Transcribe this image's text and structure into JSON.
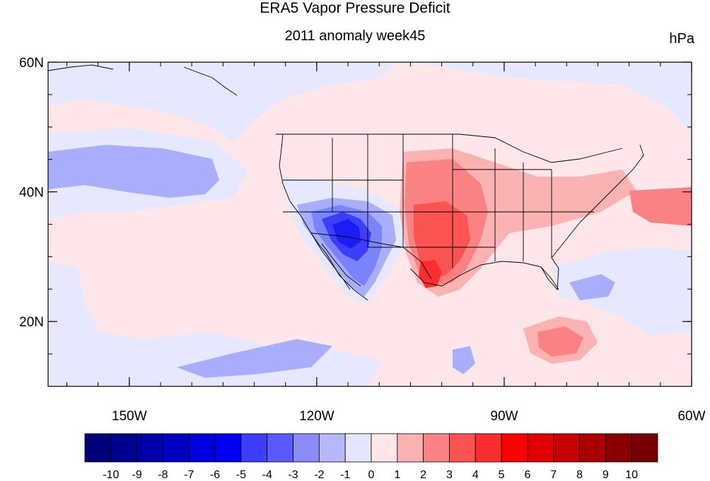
{
  "title": "ERA5 Vapor Pressure Deficit",
  "subtitle": "2011 anomaly week45",
  "units": "hPa",
  "map": {
    "lon_range": [
      -163,
      -60
    ],
    "lat_range": [
      10,
      60
    ],
    "lon_ticks": [
      {
        "lon": -150,
        "label": "150W"
      },
      {
        "lon": -120,
        "label": "120W"
      },
      {
        "lon": -90,
        "label": "90W"
      },
      {
        "lon": -60,
        "label": "60W"
      }
    ],
    "lat_ticks": [
      {
        "lat": 60,
        "label": "60N"
      },
      {
        "lat": 40,
        "label": "40N"
      },
      {
        "lat": 20,
        "label": "20N"
      }
    ],
    "background_anomaly_color": "#ffe6e8",
    "regions": [
      {
        "name": "pacific-north-negative",
        "level": -1,
        "color": "#e5e8ff"
      },
      {
        "name": "pacific-central-negative",
        "level": -2,
        "color": "#a8aefc"
      },
      {
        "name": "southwest-us-negative",
        "level": -3,
        "color": "#7b83fb"
      },
      {
        "name": "southwest-us-core-negative",
        "level": -6,
        "color": "#1a1ef5"
      },
      {
        "name": "southern-plains-positive",
        "level": 3,
        "color": "#fb7b7b"
      },
      {
        "name": "texas-core-positive",
        "level": 6,
        "color": "#f21717"
      },
      {
        "name": "caribbean-positive",
        "level": 2,
        "color": "#fbb2b2"
      },
      {
        "name": "atlantic-negative",
        "level": -2,
        "color": "#a8aefc"
      }
    ]
  },
  "colorbar": {
    "labels": [
      "-10",
      "-9",
      "-8",
      "-7",
      "-6",
      "-5",
      "-4",
      "-3",
      "-2",
      "-1",
      "0",
      "1",
      "2",
      "3",
      "4",
      "5",
      "6",
      "7",
      "8",
      "9",
      "10"
    ],
    "colors": [
      "#00007a",
      "#00008f",
      "#0000a8",
      "#0000c2",
      "#0000dc",
      "#0000f5",
      "#3d3dfb",
      "#5a5afb",
      "#8a8afb",
      "#b7b7fb",
      "#e4e6fd",
      "#ffe6e8",
      "#fbb2b2",
      "#fb8282",
      "#fb5252",
      "#fb2d2d",
      "#fb0000",
      "#e10000",
      "#c80000",
      "#a80000",
      "#8a0000",
      "#770000"
    ]
  }
}
